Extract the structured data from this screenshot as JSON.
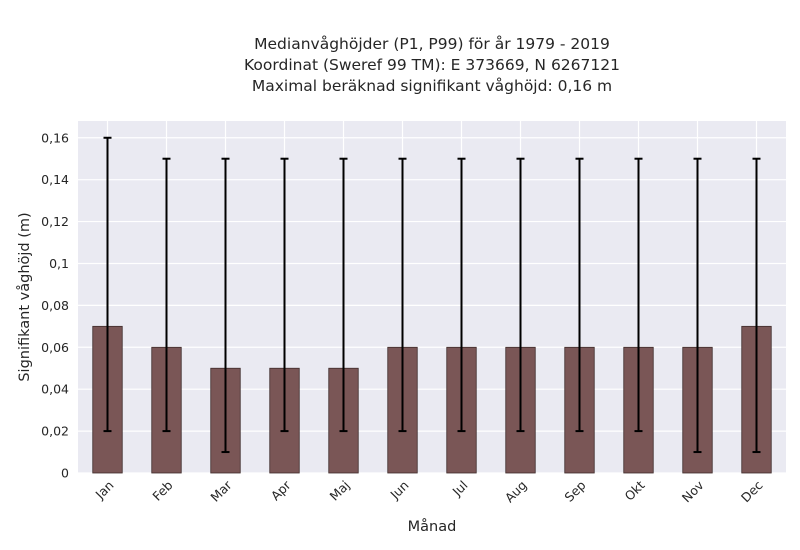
{
  "chart_data": {
    "type": "bar",
    "title_lines": [
      "Medianvåghöjder (P1, P99) för år 1979 - 2019",
      "Koordinat (Sweref 99 TM): E 373669, N 6267121",
      "Maximal beräknad signifikant våghöjd: 0,16 m"
    ],
    "xlabel": "Månad",
    "ylabel": "Signifikant våghöjd (m)",
    "categories": [
      "Jan",
      "Feb",
      "Mar",
      "Apr",
      "Maj",
      "Jun",
      "Jul",
      "Aug",
      "Sep",
      "Okt",
      "Nov",
      "Dec"
    ],
    "values": [
      0.07,
      0.06,
      0.05,
      0.05,
      0.05,
      0.06,
      0.06,
      0.06,
      0.06,
      0.06,
      0.06,
      0.07
    ],
    "p1": [
      0.02,
      0.02,
      0.01,
      0.02,
      0.02,
      0.02,
      0.02,
      0.02,
      0.02,
      0.02,
      0.01,
      0.01
    ],
    "p99": [
      0.16,
      0.15,
      0.15,
      0.15,
      0.15,
      0.15,
      0.15,
      0.15,
      0.15,
      0.15,
      0.15,
      0.15
    ],
    "ylim": [
      0,
      0.168
    ],
    "yticks": [
      0,
      0.02,
      0.04,
      0.06,
      0.08,
      0.1,
      0.12,
      0.14,
      0.16
    ],
    "ytick_labels": [
      "0",
      "0,02",
      "0,04",
      "0,06",
      "0,08",
      "0,1",
      "0,12",
      "0,14",
      "0,16"
    ],
    "grid": true,
    "colors": {
      "bar": "#7a5656",
      "bar_edge": "#3f2b2b",
      "error_bar": "#000000",
      "plot_bg": "#eaeaf2",
      "grid": "#ffffff"
    }
  }
}
